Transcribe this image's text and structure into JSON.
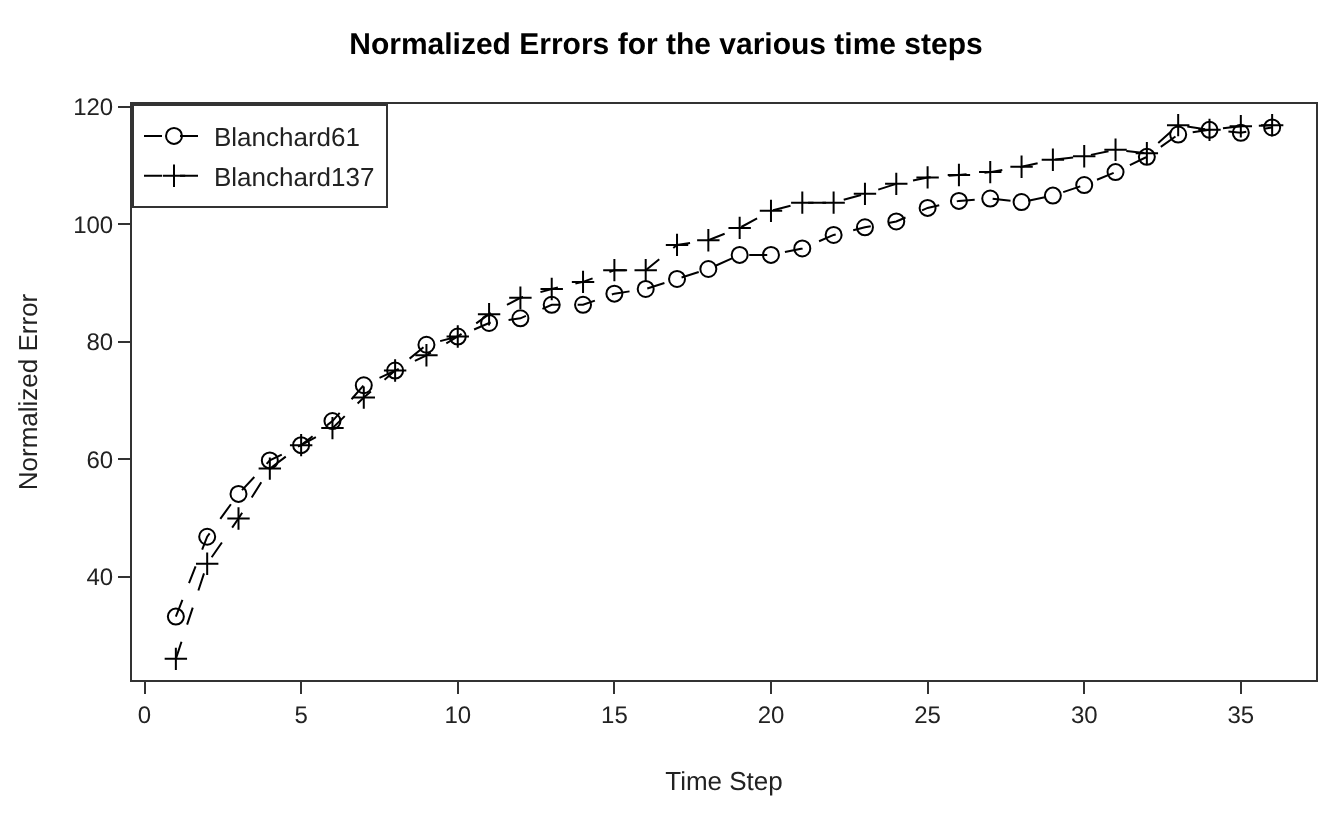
{
  "chart_data": {
    "type": "line",
    "title": "Normalized Errors for the various time steps",
    "xlabel": "Time Step",
    "ylabel": "Normalized Error",
    "x": [
      1,
      2,
      3,
      4,
      5,
      6,
      7,
      8,
      9,
      10,
      11,
      12,
      13,
      14,
      15,
      16,
      17,
      18,
      19,
      20,
      21,
      22,
      23,
      24,
      25,
      26,
      27,
      28,
      29,
      30,
      31,
      32,
      33,
      34,
      35,
      36
    ],
    "series": [
      {
        "name": "Blanchard61",
        "color": "#000000",
        "marker": "circle",
        "line_style": "dashed",
        "values": [
          33.2,
          46.8,
          54.1,
          59.8,
          62.4,
          66.5,
          72.6,
          75.1,
          79.5,
          80.9,
          83.2,
          84.0,
          86.3,
          86.3,
          88.2,
          89.0,
          90.7,
          92.4,
          94.8,
          94.8,
          95.9,
          98.2,
          99.5,
          100.5,
          102.8,
          104.0,
          104.4,
          103.8,
          104.9,
          106.7,
          108.9,
          111.5,
          115.3,
          116.1,
          115.6,
          116.5
        ]
      },
      {
        "name": "Blanchard137",
        "color": "#000000",
        "marker": "cross",
        "line_style": "dashed",
        "values": [
          26.0,
          42.2,
          49.9,
          58.4,
          62.4,
          65.3,
          70.5,
          75.1,
          77.7,
          80.9,
          84.7,
          87.5,
          89.0,
          90.2,
          92.2,
          92.2,
          96.5,
          97.3,
          99.4,
          102.3,
          103.7,
          103.7,
          105.2,
          106.9,
          108.0,
          108.4,
          108.9,
          109.8,
          111.0,
          111.6,
          112.7,
          112.1,
          116.9,
          116.1,
          116.7,
          116.9
        ]
      }
    ],
    "xlim": [
      -0.4,
      37.4
    ],
    "ylim": [
      22.4,
      120.5
    ],
    "xticks": [
      0,
      5,
      10,
      15,
      20,
      25,
      30,
      35
    ],
    "yticks": [
      40,
      60,
      80,
      100,
      120
    ],
    "grid": false,
    "legend": "top left"
  }
}
